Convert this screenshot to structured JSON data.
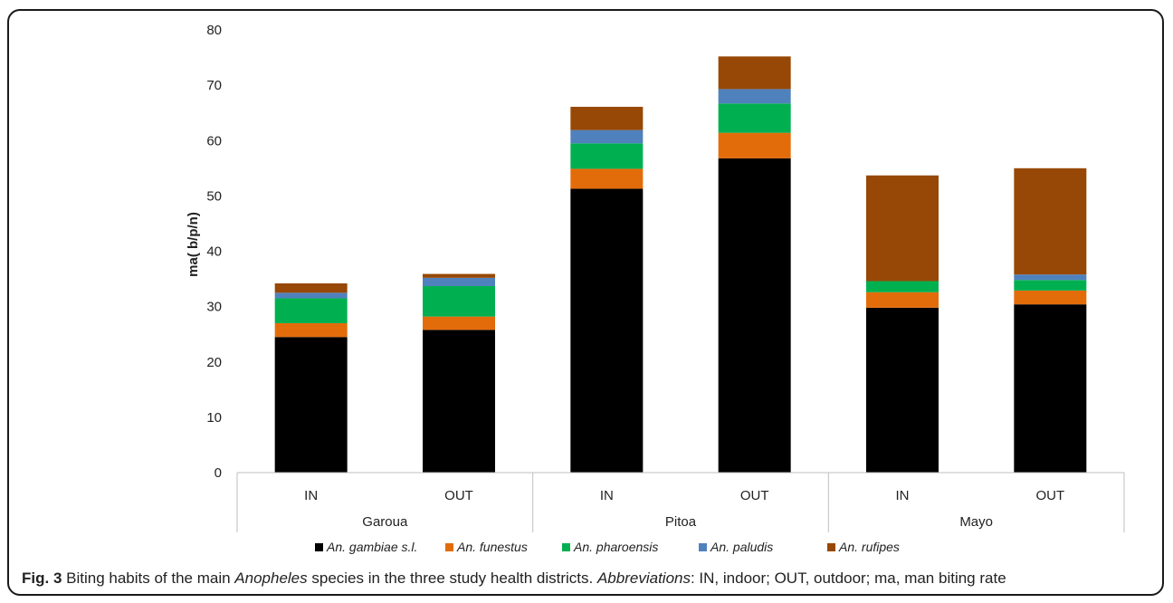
{
  "chart_data": {
    "type": "bar",
    "stacked": true,
    "ylabel": "ma( b/p/n)",
    "ylim": [
      0,
      80
    ],
    "yticks": [
      0,
      10,
      20,
      30,
      40,
      50,
      60,
      70,
      80
    ],
    "grid": false,
    "legend_position": "bottom",
    "groups": [
      {
        "name": "Garoua",
        "categories": [
          "IN",
          "OUT"
        ]
      },
      {
        "name": "Pitoa",
        "categories": [
          "IN",
          "OUT"
        ]
      },
      {
        "name": "Mayo",
        "categories": [
          "IN",
          "OUT"
        ]
      }
    ],
    "series": [
      {
        "name": "An. gambiae s.l.",
        "color": "#000000",
        "values": [
          24.5,
          25.8,
          51.3,
          56.8,
          29.8,
          30.4
        ]
      },
      {
        "name": "An. funestus",
        "color": "#e36c0a",
        "values": [
          2.5,
          2.4,
          3.6,
          4.6,
          2.8,
          2.5
        ]
      },
      {
        "name": "An. pharoensis",
        "color": "#00b050",
        "values": [
          4.5,
          5.5,
          4.6,
          5.3,
          2.0,
          1.9
        ]
      },
      {
        "name": "An. paludis",
        "color": "#4f81bd",
        "values": [
          1.0,
          1.5,
          2.4,
          2.6,
          0.0,
          1.0
        ]
      },
      {
        "name": "An. rufipes",
        "color": "#974806",
        "values": [
          1.7,
          0.7,
          4.2,
          5.9,
          19.1,
          19.2
        ]
      }
    ]
  },
  "caption": {
    "fig_label": "Fig. 3",
    "text_1": " Biting habits of the main ",
    "italic_1": "Anopheles",
    "text_2": " species in the three study health districts. ",
    "italic_2": "Abbreviations",
    "text_3": ": IN, indoor; OUT, outdoor; ma, man biting rate"
  }
}
